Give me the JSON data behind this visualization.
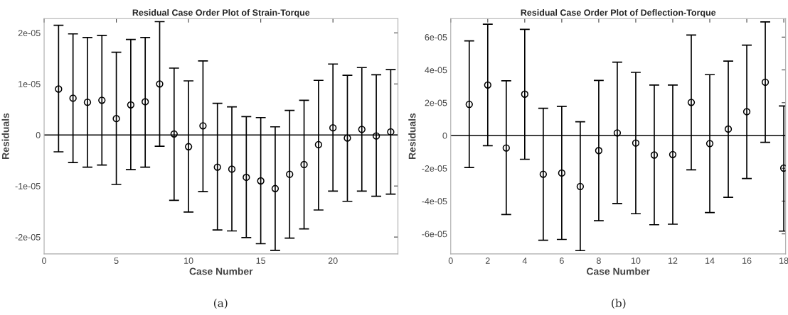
{
  "chart_data": [
    {
      "type": "scatter",
      "title": "Residual Case Order Plot of Strain-Torque",
      "xlabel": "Case Number",
      "ylabel": "Residuals",
      "x": [
        1,
        2,
        3,
        4,
        5,
        6,
        7,
        8,
        9,
        10,
        11,
        12,
        13,
        14,
        15,
        16,
        17,
        18,
        19,
        20,
        21,
        22,
        23,
        24
      ],
      "series": [
        {
          "color": "#000000",
          "values": [
            9e-06,
            7.2e-06,
            6.4e-06,
            6.8e-06,
            3.2e-06,
            5.9e-06,
            6.5e-06,
            1e-05,
            2e-07,
            -2.3e-06,
            1.8e-06,
            -6.3e-06,
            -6.7e-06,
            -8.3e-06,
            -9e-06,
            -1.05e-05,
            -7.7e-06,
            -5.8e-06,
            -1.9e-06,
            1.4e-06,
            -6e-07,
            1.1e-06,
            -2e-07,
            6e-07
          ],
          "errors": [
            [
              -3.3e-06,
              2.15e-05
            ],
            [
              -5.4e-06,
              1.98e-05
            ],
            [
              -6.3e-06,
              1.91e-05
            ],
            [
              -5.9e-06,
              1.95e-05
            ],
            [
              -9.7e-06,
              1.62e-05
            ],
            [
              -6.8e-06,
              1.87e-05
            ],
            [
              -6.3e-06,
              1.91e-05
            ],
            [
              -2.2e-06,
              2.22e-05
            ],
            [
              -1.28e-05,
              1.31e-05
            ],
            [
              -1.51e-05,
              1.06e-05
            ],
            [
              -1.11e-05,
              1.45e-05
            ],
            [
              -1.86e-05,
              6.2e-06
            ],
            [
              -1.88e-05,
              5.5e-06
            ],
            [
              -2.01e-05,
              3.6e-06
            ],
            [
              -2.13e-05,
              3.4e-06
            ],
            [
              -2.26e-05,
              1.6e-06
            ],
            [
              -2.02e-05,
              4.8e-06
            ],
            [
              -1.84e-05,
              6.8e-06
            ],
            [
              -1.47e-05,
              1.07e-05
            ],
            [
              -1.1e-05,
              1.39e-05
            ],
            [
              -1.3e-05,
              1.17e-05
            ],
            [
              -1.1e-05,
              1.32e-05
            ],
            [
              -1.2e-05,
              1.18e-05
            ],
            [
              -1.16e-05,
              1.28e-05
            ]
          ]
        }
      ],
      "xlim": [
        0,
        24.5
      ],
      "xticks": [
        0,
        5,
        10,
        15,
        20
      ],
      "ylim": [
        -2.33e-05,
        2.28e-05
      ],
      "yticks": [
        -2e-05,
        -1e-05,
        0,
        1e-05,
        2e-05
      ],
      "ref_lines": [
        {
          "axis": "y",
          "value": 0,
          "color": "#000000"
        }
      ],
      "marker": "circle",
      "grid": false,
      "annotations": [
        "(a)"
      ]
    },
    {
      "type": "scatter",
      "title": "Residual Case Order Plot of Deflection-Torque",
      "xlabel": "Case Number",
      "ylabel": "Residuals",
      "x": [
        1,
        2,
        3,
        4,
        5,
        6,
        7,
        8,
        9,
        10,
        11,
        12,
        13,
        14,
        15,
        16,
        17,
        18
      ],
      "series": [
        {
          "color": "#000000",
          "values": [
            1.9e-05,
            3.08e-05,
            -7.6e-06,
            2.52e-05,
            -2.36e-05,
            -2.29e-05,
            -3.11e-05,
            -9.2e-06,
            1.6e-06,
            -4.6e-06,
            -1.19e-05,
            -1.16e-05,
            2.02e-05,
            -4.9e-06,
            3.9e-06,
            1.45e-05,
            3.25e-05,
            -1.99e-05
          ],
          "errors": [
            [
              -1.95e-05,
              5.77e-05
            ],
            [
              -6.2e-06,
              6.79e-05
            ],
            [
              -4.82e-05,
              3.34e-05
            ],
            [
              -1.45e-05,
              6.47e-05
            ],
            [
              -6.39e-05,
              1.66e-05
            ],
            [
              -6.34e-05,
              1.78e-05
            ],
            [
              -7.02e-05,
              8.4e-06
            ],
            [
              -5.2e-05,
              3.36e-05
            ],
            [
              -4.15e-05,
              4.47e-05
            ],
            [
              -4.77e-05,
              3.85e-05
            ],
            [
              -5.44e-05,
              3.08e-05
            ],
            [
              -5.41e-05,
              3.08e-05
            ],
            [
              -2.09e-05,
              6.13e-05
            ],
            [
              -4.7e-05,
              3.71e-05
            ],
            [
              -3.77e-05,
              4.54e-05
            ],
            [
              -2.62e-05,
              5.51e-05
            ],
            [
              -4.2e-06,
              6.93e-05
            ],
            [
              -5.83e-05,
              1.8e-05
            ]
          ]
        }
      ],
      "xlim": [
        0,
        18.1
      ],
      "xticks": [
        0,
        2,
        4,
        6,
        8,
        10,
        12,
        14,
        16,
        18
      ],
      "ylim": [
        -7.22e-05,
        7.13e-05
      ],
      "yticks": [
        -6e-05,
        -4e-05,
        -2e-05,
        0,
        2e-05,
        4e-05,
        6e-05
      ],
      "ref_lines": [
        {
          "axis": "y",
          "value": 0,
          "color": "#000000"
        }
      ],
      "marker": "circle",
      "grid": false,
      "annotations": [
        "(b)"
      ]
    }
  ]
}
